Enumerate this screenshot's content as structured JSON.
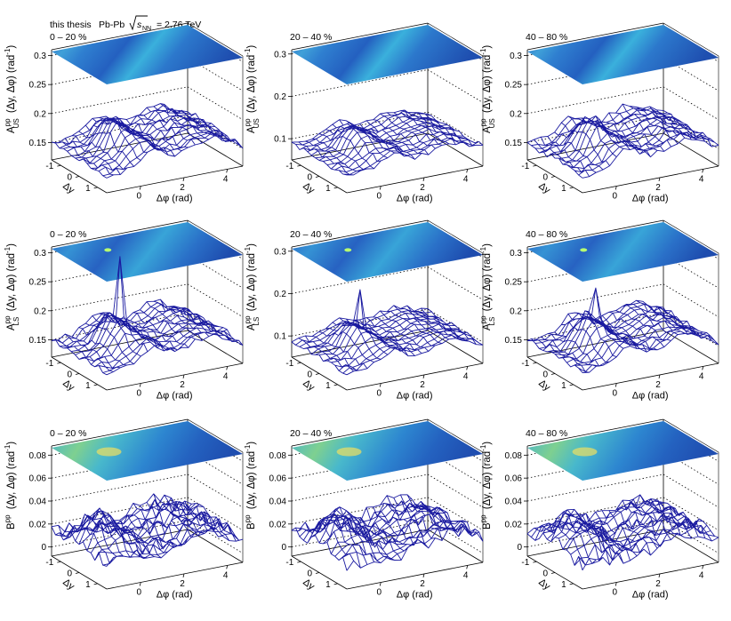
{
  "figure": {
    "header_left": "this thesis",
    "header_system": "Pb-Pb",
    "header_sqrt_s": "s",
    "header_sqrt_sub": "NN",
    "header_energy": "= 2.76 TeV"
  },
  "axes_text": {
    "x_title": "Δφ (rad)",
    "y_title": "Δy",
    "z_mid": "(Δy, Δφ) (rad",
    "z_sup_unit": "-1",
    "z_close": ")",
    "x_ticks": [
      "0",
      "2",
      "4"
    ],
    "y_ticks": [
      "-1",
      "0",
      "1"
    ]
  },
  "chart_data": [
    {
      "type": "surface",
      "row": 0,
      "col": 0,
      "title": "0 – 20 %",
      "zlabel_main": "A",
      "zlabel_sup": "pp",
      "zlabel_sub": "US",
      "xlabel": "Δφ (rad)",
      "ylabel": "Δy",
      "xlim": [
        -1.57,
        4.71
      ],
      "ylim": [
        -1.5,
        1.5
      ],
      "zlim": [
        0.12,
        0.31
      ],
      "ztick_values": [
        0.15,
        0.2,
        0.25,
        0.3
      ],
      "ztick_labels": [
        "0.15",
        "0.2",
        "0.25",
        "0.3"
      ],
      "spike": 0
    },
    {
      "type": "surface",
      "row": 0,
      "col": 1,
      "title": "20 – 40 %",
      "zlabel_main": "A",
      "zlabel_sup": "pp",
      "zlabel_sub": "US",
      "xlabel": "Δφ (rad)",
      "ylabel": "Δy",
      "xlim": [
        -1.57,
        4.71
      ],
      "ylim": [
        -1.5,
        1.5
      ],
      "zlim": [
        0.05,
        0.31
      ],
      "ztick_values": [
        0.1,
        0.2,
        0.3
      ],
      "ztick_labels": [
        "0.1",
        "0.2",
        "0.3"
      ],
      "spike": 0
    },
    {
      "type": "surface",
      "row": 0,
      "col": 2,
      "title": "40 – 80 %",
      "zlabel_main": "A",
      "zlabel_sup": "pp",
      "zlabel_sub": "US",
      "xlabel": "Δφ (rad)",
      "ylabel": "Δy",
      "xlim": [
        -1.57,
        4.71
      ],
      "ylim": [
        -1.5,
        1.5
      ],
      "zlim": [
        0.12,
        0.31
      ],
      "ztick_values": [
        0.15,
        0.2,
        0.25,
        0.3
      ],
      "ztick_labels": [
        "0.15",
        "0.2",
        "0.25",
        "0.3"
      ],
      "spike": 0
    },
    {
      "type": "surface",
      "row": 1,
      "col": 0,
      "title": "0 – 20 %",
      "zlabel_main": "A",
      "zlabel_sup": "pp",
      "zlabel_sub": "LS",
      "xlabel": "Δφ (rad)",
      "ylabel": "Δy",
      "xlim": [
        -1.57,
        4.71
      ],
      "ylim": [
        -1.5,
        1.5
      ],
      "zlim": [
        0.12,
        0.31
      ],
      "ztick_values": [
        0.15,
        0.2,
        0.25,
        0.3
      ],
      "ztick_labels": [
        "0.15",
        "0.2",
        "0.25",
        "0.3"
      ],
      "spike": 1.0
    },
    {
      "type": "surface",
      "row": 1,
      "col": 1,
      "title": "20 – 40 %",
      "zlabel_main": "A",
      "zlabel_sup": "pp",
      "zlabel_sub": "LS",
      "xlabel": "Δφ (rad)",
      "ylabel": "Δy",
      "xlim": [
        -1.57,
        4.71
      ],
      "ylim": [
        -1.5,
        1.5
      ],
      "zlim": [
        0.05,
        0.31
      ],
      "ztick_values": [
        0.1,
        0.2,
        0.3
      ],
      "ztick_labels": [
        "0.1",
        "0.2",
        "0.3"
      ],
      "spike": 0.45
    },
    {
      "type": "surface",
      "row": 1,
      "col": 2,
      "title": "40 – 80 %",
      "zlabel_main": "A",
      "zlabel_sup": "pp",
      "zlabel_sub": "LS",
      "xlabel": "Δφ (rad)",
      "ylabel": "Δy",
      "xlim": [
        -1.57,
        4.71
      ],
      "ylim": [
        -1.5,
        1.5
      ],
      "zlim": [
        0.12,
        0.31
      ],
      "ztick_values": [
        0.15,
        0.2,
        0.25,
        0.3
      ],
      "ztick_labels": [
        "0.15",
        "0.2",
        "0.25",
        "0.3"
      ],
      "spike": 0.35
    },
    {
      "type": "surface",
      "row": 2,
      "col": 0,
      "title": "0 – 20 %",
      "zlabel_main": "B",
      "zlabel_sup": "pp",
      "zlabel_sub": "",
      "xlabel": "Δφ (rad)",
      "ylabel": "Δy",
      "xlim": [
        -1.57,
        4.71
      ],
      "ylim": [
        -1.5,
        1.5
      ],
      "zlim": [
        -0.008,
        0.088
      ],
      "ztick_values": [
        0,
        0.02,
        0.04,
        0.06,
        0.08
      ],
      "ztick_labels": [
        "0",
        "0.02",
        "0.04",
        "0.06",
        "0.08"
      ],
      "spike": 0
    },
    {
      "type": "surface",
      "row": 2,
      "col": 1,
      "title": "20 – 40 %",
      "zlabel_main": "B",
      "zlabel_sup": "pp",
      "zlabel_sub": "",
      "xlabel": "Δφ (rad)",
      "ylabel": "Δy",
      "xlim": [
        -1.57,
        4.71
      ],
      "ylim": [
        -1.5,
        1.5
      ],
      "zlim": [
        -0.008,
        0.088
      ],
      "ztick_values": [
        0,
        0.02,
        0.04,
        0.06,
        0.08
      ],
      "ztick_labels": [
        "0",
        "0.02",
        "0.04",
        "0.06",
        "0.08"
      ],
      "spike": 0
    },
    {
      "type": "surface",
      "row": 2,
      "col": 2,
      "title": "40 – 80 %",
      "zlabel_main": "B",
      "zlabel_sup": "pp",
      "zlabel_sub": "",
      "xlabel": "Δφ (rad)",
      "ylabel": "Δy",
      "xlim": [
        -1.57,
        4.71
      ],
      "ylim": [
        -1.5,
        1.5
      ],
      "zlim": [
        -0.008,
        0.088
      ],
      "ztick_values": [
        0,
        0.02,
        0.04,
        0.06,
        0.08
      ],
      "ztick_labels": [
        "0",
        "0.02",
        "0.04",
        "0.06",
        "0.08"
      ],
      "spike": 0
    }
  ]
}
